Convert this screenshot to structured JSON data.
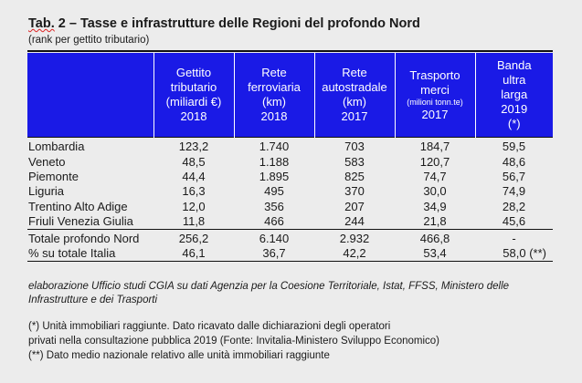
{
  "title": {
    "prefix": "Tab.",
    "rest": " 2 – Tasse e infrastrutture delle Regioni del profondo Nord"
  },
  "subtitle": "(rank per gettito tributario)",
  "headers": [
    {
      "lines": [
        "Gettito",
        "tributario",
        "(miliardi €)",
        "2018"
      ]
    },
    {
      "lines": [
        "Rete",
        "ferroviaria",
        "(km)",
        "2018"
      ]
    },
    {
      "lines": [
        "Rete",
        "autostradale",
        "(km)",
        "2017"
      ]
    },
    {
      "lines": [
        "Trasporto",
        "merci"
      ],
      "small": "(milioni tonn.te)",
      "year": "2017"
    },
    {
      "lines": [
        "Banda",
        "ultra",
        "larga",
        "2019",
        "(*)"
      ]
    }
  ],
  "rows": [
    {
      "region": "Lombardia",
      "v": [
        "123,2",
        "1.740",
        "703",
        "184,7",
        "59,5"
      ]
    },
    {
      "region": "Veneto",
      "v": [
        "48,5",
        "1.188",
        "583",
        "120,7",
        "48,6"
      ]
    },
    {
      "region": "Piemonte",
      "v": [
        "44,4",
        "1.895",
        "825",
        "74,7",
        "56,7"
      ]
    },
    {
      "region": "Liguria",
      "v": [
        "16,3",
        "495",
        "370",
        "30,0",
        "74,9"
      ]
    },
    {
      "region": "Trentino Alto Adige",
      "v": [
        "12,0",
        "356",
        "207",
        "34,9",
        "28,2"
      ]
    },
    {
      "region": "Friuli Venezia Giulia",
      "v": [
        "11,8",
        "466",
        "244",
        "21,8",
        "45,6"
      ]
    }
  ],
  "totals": [
    {
      "label": "Totale profondo Nord",
      "v": [
        "256,2",
        "6.140",
        "2.932",
        "466,8",
        "-"
      ]
    },
    {
      "label": "% su totale Italia",
      "v": [
        "46,1",
        "36,7",
        "42,2",
        "53,4",
        "58,0 (**)"
      ]
    }
  ],
  "source": "elaborazione Ufficio studi CGIA su dati Agenzia per la Coesione Territoriale, Istat, FFSS, Ministero delle Infrastrutture e dei Trasporti",
  "notes": [
    "(*) Unità immobiliari raggiunte. Dato ricavato dalle dichiarazioni degli operatori",
    "privati nella consultazione pubblica 2019 (Fonte: Invitalia-Ministero Sviluppo Economico)",
    "(**) Dato medio nazionale relativo alle unità immobiliari raggiunte"
  ]
}
